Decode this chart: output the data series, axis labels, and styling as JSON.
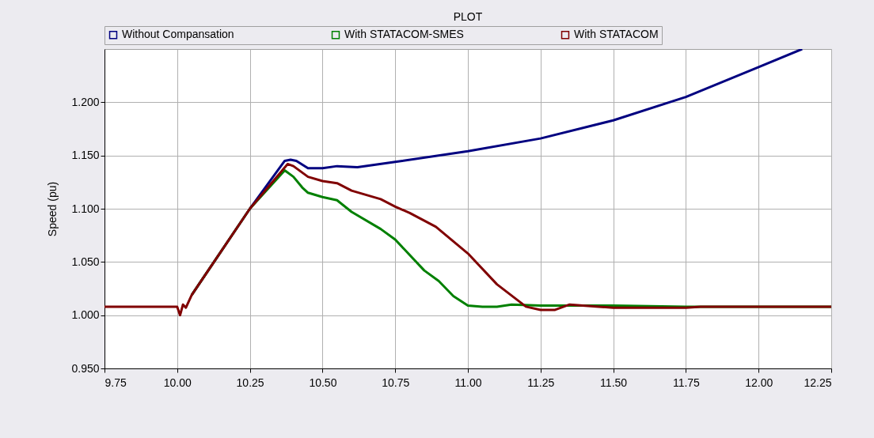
{
  "chart_data": {
    "type": "line",
    "title": "PLOT",
    "ylabel": "Speed (pu)",
    "xlim": [
      9.75,
      12.25
    ],
    "ylim": [
      0.95,
      1.25
    ],
    "xticks": [
      {
        "value": 9.75,
        "label": "9.75"
      },
      {
        "value": 10,
        "label": "10.00"
      },
      {
        "value": 10.25,
        "label": "10.25"
      },
      {
        "value": 10.5,
        "label": "10.50"
      },
      {
        "value": 10.75,
        "label": "10.75"
      },
      {
        "value": 11,
        "label": "11.00"
      },
      {
        "value": 11.25,
        "label": "11.25"
      },
      {
        "value": 11.5,
        "label": "11.50"
      },
      {
        "value": 11.75,
        "label": "11.75"
      },
      {
        "value": 12,
        "label": "12.00"
      },
      {
        "value": 12.25,
        "label": "12.25"
      }
    ],
    "yticks": [
      {
        "value": 0.95,
        "label": "0.950"
      },
      {
        "value": 1,
        "label": "1.000"
      },
      {
        "value": 1.05,
        "label": "1.050"
      },
      {
        "value": 1.1,
        "label": "1.100"
      },
      {
        "value": 1.15,
        "label": "1.150"
      },
      {
        "value": 1.2,
        "label": "1.200"
      }
    ],
    "grid": true,
    "legend": "top",
    "marker": "none",
    "line_style": "solid",
    "series": [
      {
        "name": "Without Compansation",
        "color": "#000080",
        "x": [
          10.05,
          10.25,
          10.37,
          10.39,
          10.41,
          10.45,
          10.5,
          10.55,
          10.62,
          10.75,
          11.0,
          11.25,
          11.5,
          11.75,
          12.0,
          12.15
        ],
        "values": [
          1.019,
          1.1,
          1.145,
          1.146,
          1.145,
          1.138,
          1.138,
          1.14,
          1.139,
          1.144,
          1.154,
          1.166,
          1.183,
          1.205,
          1.233,
          1.25
        ]
      },
      {
        "name": "With STATACOM-SMES",
        "color": "#008000",
        "x": [
          10.05,
          10.25,
          10.37,
          10.4,
          10.43,
          10.45,
          10.5,
          10.55,
          10.6,
          10.7,
          10.75,
          10.85,
          10.9,
          10.95,
          11.0,
          11.05,
          11.1,
          11.15,
          11.25,
          11.5,
          11.75,
          12.25
        ],
        "values": [
          1.019,
          1.1,
          1.136,
          1.13,
          1.12,
          1.115,
          1.111,
          1.108,
          1.097,
          1.081,
          1.071,
          1.042,
          1.032,
          1.018,
          1.009,
          1.008,
          1.008,
          1.01,
          1.009,
          1.009,
          1.008,
          1.008
        ]
      },
      {
        "name": "With STATACOM",
        "color": "#800000",
        "x": [
          9.75,
          10.0,
          10.01,
          10.02,
          10.03,
          10.05,
          10.25,
          10.38,
          10.4,
          10.45,
          10.5,
          10.55,
          10.6,
          10.7,
          10.75,
          10.8,
          10.89,
          11.0,
          11.1,
          11.2,
          11.25,
          11.3,
          11.35,
          11.45,
          11.5,
          11.75,
          11.8,
          12.25
        ],
        "values": [
          1.008,
          1.008,
          1.0,
          1.01,
          1.007,
          1.019,
          1.1,
          1.142,
          1.14,
          1.13,
          1.126,
          1.124,
          1.117,
          1.109,
          1.102,
          1.096,
          1.083,
          1.058,
          1.029,
          1.008,
          1.005,
          1.005,
          1.01,
          1.008,
          1.007,
          1.007,
          1.008,
          1.008
        ]
      }
    ]
  }
}
